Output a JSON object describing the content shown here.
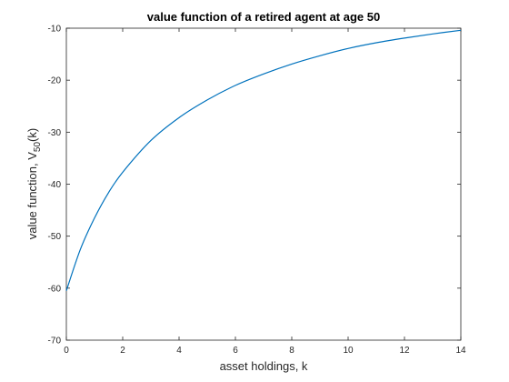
{
  "chart_data": {
    "type": "line",
    "title": "value function of a retired agent at age 50",
    "xlabel": "asset holdings, k",
    "ylabel": {
      "main": "value function, V",
      "subscript": "50",
      "suffix": "(k)"
    },
    "xlim": [
      0,
      14
    ],
    "ylim": [
      -70,
      -10
    ],
    "xticks": [
      0,
      2,
      4,
      6,
      8,
      10,
      12,
      14
    ],
    "yticks": [
      -70,
      -60,
      -50,
      -40,
      -30,
      -20,
      -10
    ],
    "grid": false,
    "line_color": "#0072BD",
    "series": [
      {
        "x": [
          0,
          0.5,
          1,
          1.5,
          2,
          3,
          4,
          5,
          6,
          7,
          8,
          9,
          10,
          11,
          12,
          13,
          14
        ],
        "y": [
          -60.5,
          -52.5,
          -46.5,
          -41.6,
          -37.7,
          -31.6,
          -27.2,
          -23.8,
          -21.0,
          -18.8,
          -16.9,
          -15.3,
          -13.9,
          -12.8,
          -11.9,
          -11.1,
          -10.4
        ]
      }
    ]
  }
}
